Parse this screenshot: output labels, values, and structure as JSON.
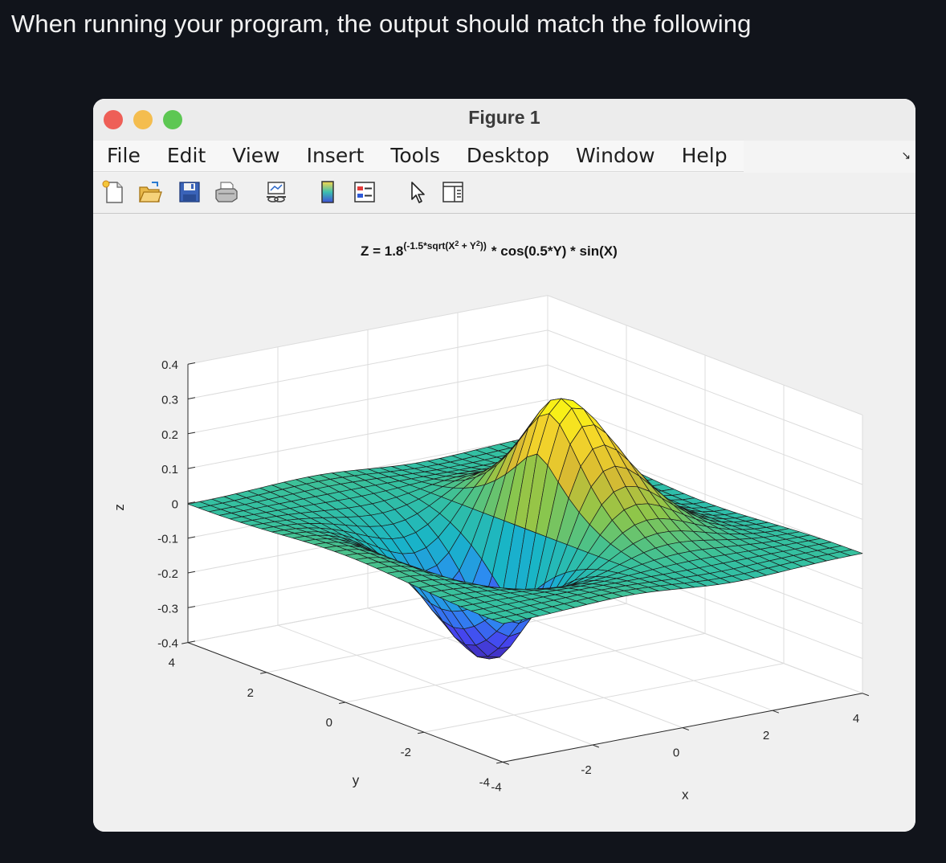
{
  "page": {
    "heading": "When running your program, the output should match the following"
  },
  "window": {
    "title": "Figure 1",
    "menu": [
      "File",
      "Edit",
      "View",
      "Insert",
      "Tools",
      "Desktop",
      "Window",
      "Help"
    ],
    "toolbar_icons": [
      "new-figure-icon",
      "open-file-icon",
      "save-icon",
      "print-icon",
      "link-plot-icon",
      "colorbar-icon",
      "legend-icon",
      "pointer-icon",
      "property-inspector-icon"
    ]
  },
  "chart_data": {
    "type": "surface",
    "title": "Z = 1.8^(-1.5*sqrt(X^2 + Y^2)) * cos(0.5*Y) * sin(X)",
    "title_parts": {
      "base": "Z = 1.8",
      "exp_a": "(-1.5*sqrt(X",
      "sup1": "2",
      "exp_b": " + Y",
      "sup2": "2",
      "exp_c": "))",
      "rest": "* cos(0.5*Y) * sin(X)"
    },
    "function": "1.8^(-1.5*sqrt(X^2+Y^2))*cos(0.5*Y)*sin(X)",
    "xlabel": "x",
    "ylabel": "y",
    "zlabel": "z",
    "xlim": [
      -4,
      4
    ],
    "ylim": [
      -4,
      4
    ],
    "zlim": [
      -0.4,
      0.4
    ],
    "x_ticks": [
      "-4",
      "-2",
      "0",
      "2",
      "4"
    ],
    "y_ticks": [
      "-4",
      "-2",
      "0",
      "2",
      "4"
    ],
    "z_ticks": [
      "-0.4",
      "-0.3",
      "-0.2",
      "-0.1",
      "0",
      "0.1",
      "0.2",
      "0.3",
      "0.4"
    ],
    "grid": true,
    "colormap": "parula",
    "colormap_stops": [
      "#3e26a8",
      "#4546f0",
      "#2b8ef0",
      "#18b4c8",
      "#35c0a0",
      "#8dc64a",
      "#d8ba32",
      "#f5d62a",
      "#f9fb0e"
    ],
    "mesh_points": 31
  }
}
